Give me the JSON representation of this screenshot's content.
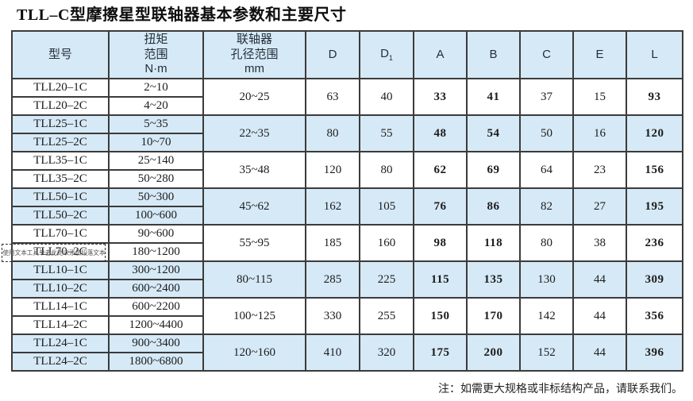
{
  "title": "TLL–C型摩擦星型联轴器基本参数和主要尺寸",
  "note": "注：如需更大规格或非标结构产品，请联系我们。",
  "watermark_text": "使用文本工具单击此处以添加段落文本",
  "colors": {
    "band_blue": "#d6e9f6",
    "border": "#3b3b3b",
    "text": "#1c1c1c",
    "background": "#ffffff"
  },
  "table": {
    "headers": [
      {
        "key": "model",
        "lines": [
          "型号"
        ]
      },
      {
        "key": "torque",
        "lines": [
          "扭矩",
          "范围",
          "N·m"
        ]
      },
      {
        "key": "bore",
        "lines": [
          "联轴器",
          "孔径范围",
          "mm"
        ]
      },
      {
        "key": "D",
        "label": "D"
      },
      {
        "key": "D1",
        "label": "D",
        "sub": "1"
      },
      {
        "key": "A",
        "label": "A"
      },
      {
        "key": "B",
        "label": "B"
      },
      {
        "key": "C",
        "label": "C"
      },
      {
        "key": "E",
        "label": "E"
      },
      {
        "key": "L",
        "label": "L"
      }
    ],
    "groups": [
      {
        "shaded": false,
        "rows": [
          {
            "model": "TLL20–1C",
            "torque": "2~10"
          },
          {
            "model": "TLL20–2C",
            "torque": "4~20"
          }
        ],
        "bore": "20~25",
        "D": "63",
        "D1": "40",
        "A": "33",
        "B": "41",
        "C": "37",
        "E": "15",
        "L": "93"
      },
      {
        "shaded": true,
        "rows": [
          {
            "model": "TLL25–1C",
            "torque": "5~35"
          },
          {
            "model": "TLL25–2C",
            "torque": "10~70"
          }
        ],
        "bore": "22~35",
        "D": "80",
        "D1": "55",
        "A": "48",
        "B": "54",
        "C": "50",
        "E": "16",
        "L": "120"
      },
      {
        "shaded": false,
        "rows": [
          {
            "model": "TLL35–1C",
            "torque": "25~140"
          },
          {
            "model": "TLL35–2C",
            "torque": "50~280"
          }
        ],
        "bore": "35~48",
        "D": "120",
        "D1": "80",
        "A": "62",
        "B": "69",
        "C": "64",
        "E": "23",
        "L": "156"
      },
      {
        "shaded": true,
        "rows": [
          {
            "model": "TLL50–1C",
            "torque": "50~300"
          },
          {
            "model": "TLL50–2C",
            "torque": "100~600"
          }
        ],
        "bore": "45~62",
        "D": "162",
        "D1": "105",
        "A": "76",
        "B": "86",
        "C": "82",
        "E": "27",
        "L": "195"
      },
      {
        "shaded": false,
        "rows": [
          {
            "model": "TLL70–1C",
            "torque": "90~600"
          },
          {
            "model": "TLL70–2C",
            "torque": "180~1200"
          }
        ],
        "bore": "55~95",
        "D": "185",
        "D1": "160",
        "A": "98",
        "B": "118",
        "C": "80",
        "E": "38",
        "L": "236"
      },
      {
        "shaded": true,
        "rows": [
          {
            "model": "TLL10–1C",
            "torque": "300~1200"
          },
          {
            "model": "TLL10–2C",
            "torque": "600~2400"
          }
        ],
        "bore": "80~115",
        "D": "285",
        "D1": "225",
        "A": "115",
        "B": "135",
        "C": "130",
        "E": "44",
        "L": "309"
      },
      {
        "shaded": false,
        "rows": [
          {
            "model": "TLL14–1C",
            "torque": "600~2200"
          },
          {
            "model": "TLL14–2C",
            "torque": "1200~4400"
          }
        ],
        "bore": "100~125",
        "D": "330",
        "D1": "255",
        "A": "150",
        "B": "170",
        "C": "142",
        "E": "44",
        "L": "356"
      },
      {
        "shaded": true,
        "rows": [
          {
            "model": "TLL24–1C",
            "torque": "900~3400"
          },
          {
            "model": "TLL24–2C",
            "torque": "1800~6800"
          }
        ],
        "bore": "120~160",
        "D": "410",
        "D1": "320",
        "A": "175",
        "B": "200",
        "C": "152",
        "E": "44",
        "L": "396"
      }
    ],
    "merged_keys": [
      "bore",
      "D",
      "D1",
      "A",
      "B",
      "C",
      "E",
      "L"
    ],
    "bold_keys": [
      "A",
      "B",
      "L"
    ]
  }
}
